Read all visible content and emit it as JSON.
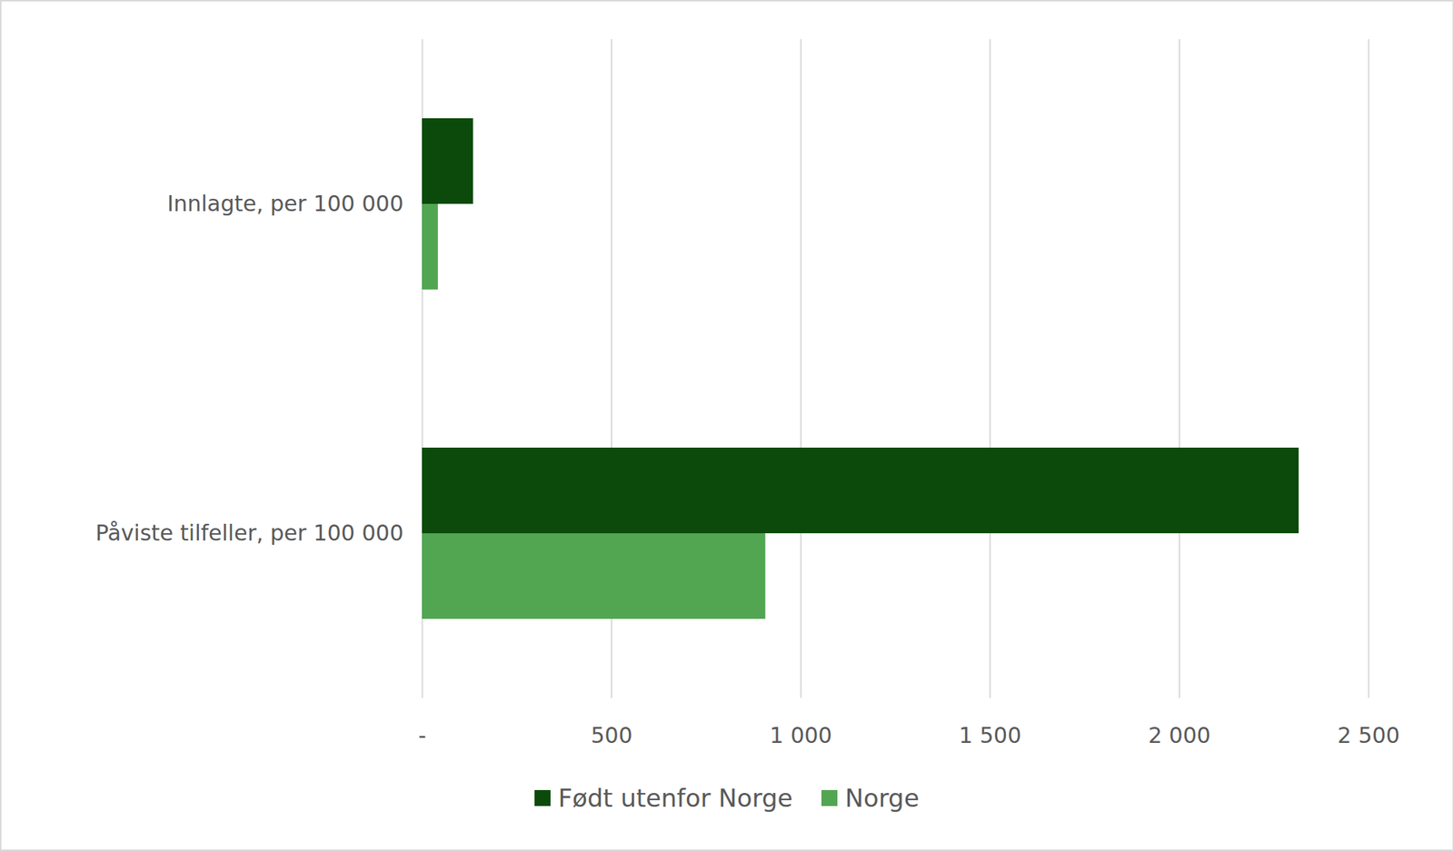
{
  "chart_data": {
    "type": "bar",
    "orientation": "horizontal",
    "categories": [
      "Innlagte, per 100 000",
      "Påviste tilfeller, per 100 000"
    ],
    "series": [
      {
        "name": "Født utenfor Norge",
        "color": "#0c4a0c",
        "values": [
          135,
          2316
        ]
      },
      {
        "name": "Norge",
        "color": "#52a652",
        "values": [
          42,
          907
        ]
      }
    ],
    "xlim": [
      0,
      2500
    ],
    "xticks": [
      {
        "value": 0,
        "label": "-"
      },
      500,
      {
        "value": 1000,
        "label": "1 000"
      },
      {
        "value": 1500,
        "label": "1 500"
      },
      {
        "value": 2000,
        "label": "2 000"
      },
      {
        "value": 2500,
        "label": "2 500"
      }
    ],
    "grid": true,
    "legend": "bottom"
  }
}
